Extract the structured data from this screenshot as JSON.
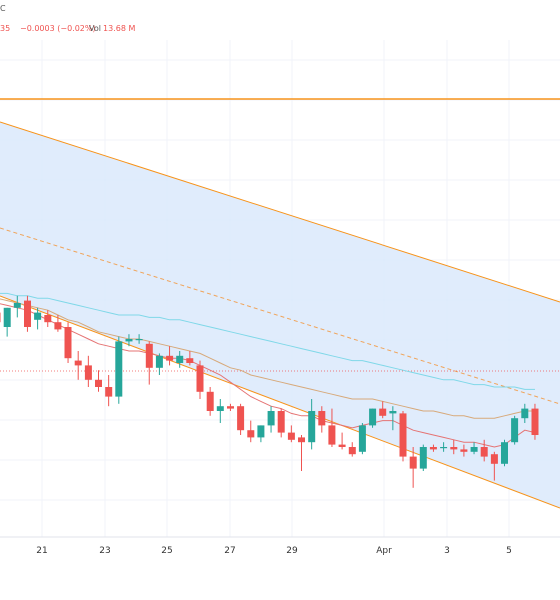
{
  "header": {
    "symbol_fragment": "C",
    "last_fragment": "35",
    "change": "−0.0003 (−0.02%)",
    "vol_label": "Vol",
    "vol_value": "13.68 M"
  },
  "colors": {
    "up": "#26a69a",
    "down": "#ef5350",
    "channel_fill": "#dbe9fb",
    "channel_line": "#f7931a",
    "resistance_line": "#f7931a",
    "ma_red": "#e57373",
    "ma_tan": "#d7a97a",
    "ma_cyan": "#7fd8e8",
    "dashed_mid": "#f0a45a"
  },
  "chart_data": {
    "type": "candlestick",
    "x_ticks": [
      "21",
      "23",
      "25",
      "27",
      "29",
      "Apr",
      "3",
      "5"
    ],
    "candles": [
      {
        "o": 0.26,
        "h": 0.3,
        "l": 0.18,
        "c": 0.22
      },
      {
        "o": 0.2,
        "h": 0.28,
        "l": 0.16,
        "c": 0.28
      },
      {
        "o": 0.28,
        "h": 0.33,
        "l": 0.24,
        "c": 0.3
      },
      {
        "o": 0.31,
        "h": 0.33,
        "l": 0.18,
        "c": 0.2
      },
      {
        "o": 0.23,
        "h": 0.28,
        "l": 0.19,
        "c": 0.26
      },
      {
        "o": 0.25,
        "h": 0.27,
        "l": 0.2,
        "c": 0.22
      },
      {
        "o": 0.22,
        "h": 0.25,
        "l": 0.18,
        "c": 0.19
      },
      {
        "o": 0.2,
        "h": 0.22,
        "l": 0.05,
        "c": 0.07
      },
      {
        "o": 0.06,
        "h": 0.1,
        "l": -0.02,
        "c": 0.04
      },
      {
        "o": 0.04,
        "h": 0.08,
        "l": -0.05,
        "c": -0.02
      },
      {
        "o": -0.02,
        "h": 0.02,
        "l": -0.07,
        "c": -0.05
      },
      {
        "o": -0.05,
        "h": 0.0,
        "l": -0.13,
        "c": -0.09
      },
      {
        "o": -0.09,
        "h": 0.16,
        "l": -0.12,
        "c": 0.14
      },
      {
        "o": 0.14,
        "h": 0.17,
        "l": 0.12,
        "c": 0.15
      },
      {
        "o": 0.15,
        "h": 0.17,
        "l": 0.13,
        "c": 0.15
      },
      {
        "o": 0.13,
        "h": 0.14,
        "l": -0.04,
        "c": 0.03
      },
      {
        "o": 0.03,
        "h": 0.09,
        "l": 0.0,
        "c": 0.08
      },
      {
        "o": 0.08,
        "h": 0.12,
        "l": 0.04,
        "c": 0.06
      },
      {
        "o": 0.05,
        "h": 0.1,
        "l": 0.03,
        "c": 0.08
      },
      {
        "o": 0.07,
        "h": 0.1,
        "l": 0.04,
        "c": 0.05
      },
      {
        "o": 0.04,
        "h": 0.06,
        "l": -0.1,
        "c": -0.07
      },
      {
        "o": -0.07,
        "h": -0.05,
        "l": -0.17,
        "c": -0.15
      },
      {
        "o": -0.15,
        "h": -0.1,
        "l": -0.2,
        "c": -0.13
      },
      {
        "o": -0.13,
        "h": -0.12,
        "l": -0.15,
        "c": -0.14
      },
      {
        "o": -0.13,
        "h": -0.12,
        "l": -0.25,
        "c": -0.23
      },
      {
        "o": -0.23,
        "h": -0.19,
        "l": -0.28,
        "c": -0.26
      },
      {
        "o": -0.26,
        "h": -0.21,
        "l": -0.28,
        "c": -0.21
      },
      {
        "o": -0.21,
        "h": -0.13,
        "l": -0.24,
        "c": -0.15
      },
      {
        "o": -0.15,
        "h": -0.14,
        "l": -0.26,
        "c": -0.24
      },
      {
        "o": -0.24,
        "h": -0.21,
        "l": -0.28,
        "c": -0.27
      },
      {
        "o": -0.26,
        "h": -0.25,
        "l": -0.4,
        "c": -0.28
      },
      {
        "o": -0.28,
        "h": -0.1,
        "l": -0.31,
        "c": -0.15
      },
      {
        "o": -0.15,
        "h": -0.13,
        "l": -0.24,
        "c": -0.21
      },
      {
        "o": -0.21,
        "h": -0.14,
        "l": -0.3,
        "c": -0.29
      },
      {
        "o": -0.29,
        "h": -0.24,
        "l": -0.31,
        "c": -0.3
      },
      {
        "o": -0.3,
        "h": -0.28,
        "l": -0.34,
        "c": -0.33
      },
      {
        "o": -0.32,
        "h": -0.2,
        "l": -0.33,
        "c": -0.21
      },
      {
        "o": -0.21,
        "h": -0.14,
        "l": -0.22,
        "c": -0.14
      },
      {
        "o": -0.14,
        "h": -0.11,
        "l": -0.18,
        "c": -0.17
      },
      {
        "o": -0.16,
        "h": -0.13,
        "l": -0.23,
        "c": -0.15
      },
      {
        "o": -0.16,
        "h": -0.15,
        "l": -0.36,
        "c": -0.34
      },
      {
        "o": -0.34,
        "h": -0.3,
        "l": -0.47,
        "c": -0.39
      },
      {
        "o": -0.39,
        "h": -0.29,
        "l": -0.4,
        "c": -0.3
      },
      {
        "o": -0.3,
        "h": -0.29,
        "l": -0.32,
        "c": -0.31
      },
      {
        "o": -0.3,
        "h": -0.28,
        "l": -0.32,
        "c": -0.3
      },
      {
        "o": -0.3,
        "h": -0.27,
        "l": -0.33,
        "c": -0.31
      },
      {
        "o": -0.31,
        "h": -0.29,
        "l": -0.34,
        "c": -0.32
      },
      {
        "o": -0.32,
        "h": -0.28,
        "l": -0.33,
        "c": -0.3
      },
      {
        "o": -0.3,
        "h": -0.27,
        "l": -0.36,
        "c": -0.34
      },
      {
        "o": -0.33,
        "h": -0.32,
        "l": -0.44,
        "c": -0.37
      },
      {
        "o": -0.37,
        "h": -0.27,
        "l": -0.38,
        "c": -0.28
      },
      {
        "o": -0.28,
        "h": -0.17,
        "l": -0.29,
        "c": -0.18
      },
      {
        "o": -0.18,
        "h": -0.12,
        "l": -0.2,
        "c": -0.14
      },
      {
        "o": -0.14,
        "h": -0.12,
        "l": -0.27,
        "c": -0.25
      }
    ],
    "ma_red": [
      0.3,
      0.29,
      0.28,
      0.27,
      0.25,
      0.23,
      0.21,
      0.19,
      0.17,
      0.15,
      0.13,
      0.12,
      0.11,
      0.1,
      0.1,
      0.09,
      0.08,
      0.07,
      0.07,
      0.06,
      0.04,
      0.02,
      0.0,
      -0.03,
      -0.06,
      -0.09,
      -0.11,
      -0.13,
      -0.14,
      -0.16,
      -0.17,
      -0.17,
      -0.19,
      -0.2,
      -0.21,
      -0.22,
      -0.21,
      -0.2,
      -0.19,
      -0.19,
      -0.21,
      -0.23,
      -0.24,
      -0.25,
      -0.26,
      -0.27,
      -0.28,
      -0.28,
      -0.29,
      -0.3,
      -0.29,
      -0.26,
      -0.23,
      -0.24
    ],
    "ma_tan": [
      0.32,
      0.31,
      0.3,
      0.29,
      0.28,
      0.27,
      0.25,
      0.23,
      0.22,
      0.2,
      0.18,
      0.17,
      0.16,
      0.15,
      0.15,
      0.14,
      0.13,
      0.12,
      0.11,
      0.1,
      0.09,
      0.07,
      0.05,
      0.03,
      0.02,
      0.0,
      -0.01,
      -0.02,
      -0.03,
      -0.04,
      -0.05,
      -0.06,
      -0.07,
      -0.08,
      -0.09,
      -0.1,
      -0.1,
      -0.1,
      -0.11,
      -0.12,
      -0.13,
      -0.14,
      -0.15,
      -0.15,
      -0.16,
      -0.17,
      -0.17,
      -0.18,
      -0.18,
      -0.18,
      -0.17,
      -0.16,
      -0.15,
      -0.15
    ],
    "ma_cyan": [
      0.34,
      0.34,
      0.33,
      0.33,
      0.32,
      0.32,
      0.31,
      0.3,
      0.29,
      0.28,
      0.27,
      0.26,
      0.25,
      0.25,
      0.25,
      0.24,
      0.24,
      0.23,
      0.23,
      0.22,
      0.21,
      0.2,
      0.19,
      0.18,
      0.17,
      0.16,
      0.15,
      0.14,
      0.13,
      0.12,
      0.11,
      0.1,
      0.09,
      0.08,
      0.07,
      0.06,
      0.06,
      0.05,
      0.04,
      0.03,
      0.02,
      0.01,
      0.0,
      -0.01,
      -0.02,
      -0.02,
      -0.03,
      -0.04,
      -0.04,
      -0.05,
      -0.05,
      -0.05,
      -0.06,
      -0.06
    ]
  }
}
